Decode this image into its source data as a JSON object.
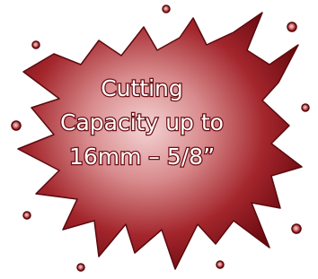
{
  "text": {
    "lines": [
      "Cutting",
      "Capacity up to",
      "16mm – 5/8”"
    ]
  }
}
